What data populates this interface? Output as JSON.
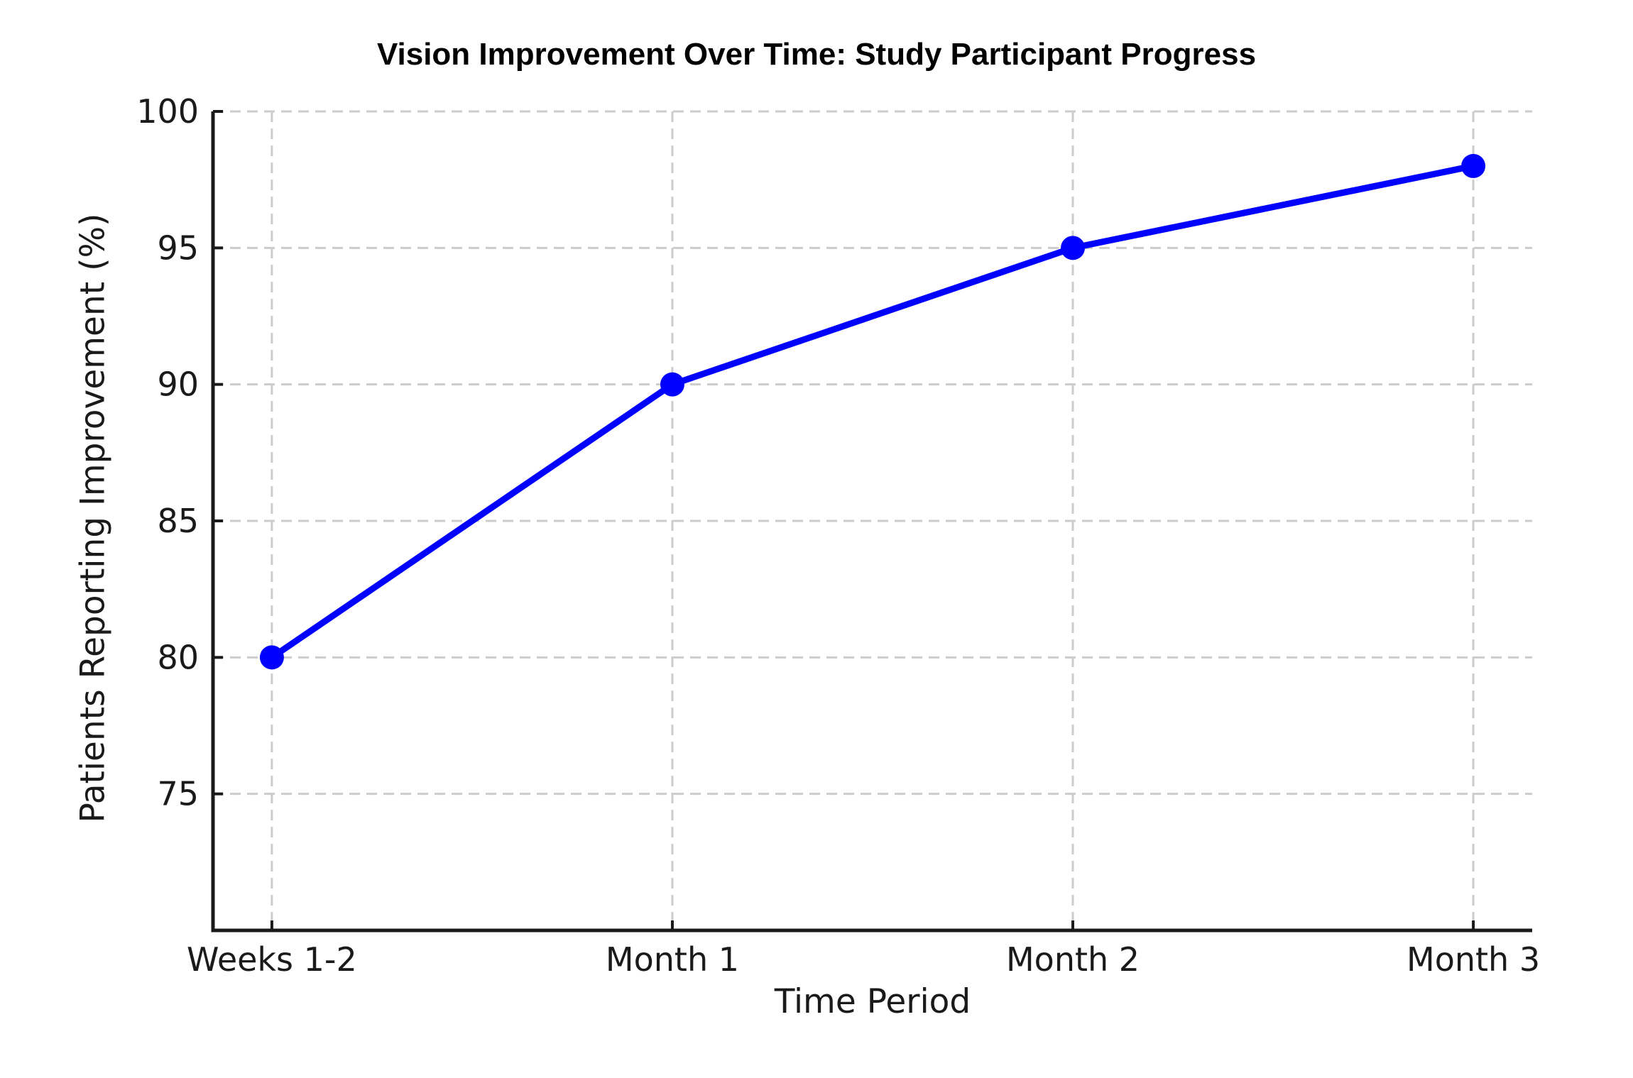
{
  "chart_data": {
    "type": "line",
    "title": "Vision Improvement Over Time: Study Participant Progress",
    "xlabel": "Time Period",
    "ylabel": "Patients Reporting Improvement (%)",
    "categories": [
      "Weeks 1-2",
      "Month 1",
      "Month 2",
      "Month 3"
    ],
    "values": [
      80,
      90,
      95,
      98
    ],
    "ylim": [
      70,
      100
    ],
    "yticks": [
      75,
      80,
      85,
      90,
      95,
      100
    ],
    "grid": true,
    "grid_style": "dashed",
    "legend": "none",
    "colors": {
      "line": "#0000ff",
      "marker": "#0000ff",
      "grid": "#cccccc",
      "axis": "#1a1a1a",
      "text": "#1a1a1a",
      "background": "#ffffff"
    }
  }
}
